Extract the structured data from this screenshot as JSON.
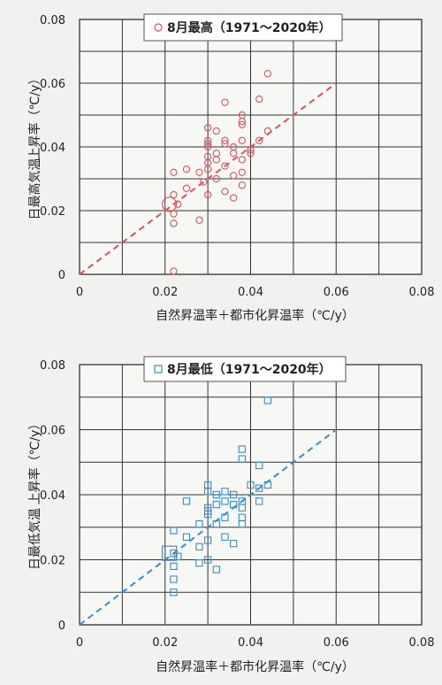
{
  "chart_data": [
    {
      "type": "scatter",
      "legend_label": "8月最高（1971～2020年）",
      "xlabel": "自然昇温率＋都市化昇温率（℃/y）",
      "ylabel_part1": "日最高気温",
      "ylabel_part2": "上昇率（℃/y）",
      "xlim": [
        0,
        0.08
      ],
      "ylim": [
        0,
        0.08
      ],
      "x_ticks": [
        0,
        0.02,
        0.04,
        0.06,
        0.08
      ],
      "y_ticks": [
        0,
        0.02,
        0.04,
        0.06,
        0.08
      ],
      "x_tick_labels": [
        "0",
        "0.02",
        "0.04",
        "0.06",
        "0.08"
      ],
      "y_tick_labels": [
        "0",
        "0.02",
        "0.04",
        "0.06",
        "0.08"
      ],
      "grid": true,
      "legend_position": "top-center",
      "marker": "circle",
      "color": "#d9545a",
      "reference_line": {
        "style": "dashed",
        "x": [
          0,
          0.06
        ],
        "y": [
          0,
          0.06
        ]
      },
      "highlight_point": {
        "x": 0.021,
        "y": 0.022
      },
      "points": [
        [
          0.022,
          0.001
        ],
        [
          0.022,
          0.016
        ],
        [
          0.022,
          0.019
        ],
        [
          0.022,
          0.025
        ],
        [
          0.022,
          0.032
        ],
        [
          0.023,
          0.022
        ],
        [
          0.025,
          0.033
        ],
        [
          0.025,
          0.027
        ],
        [
          0.028,
          0.017
        ],
        [
          0.028,
          0.032
        ],
        [
          0.029,
          0.029
        ],
        [
          0.03,
          0.025
        ],
        [
          0.03,
          0.033
        ],
        [
          0.03,
          0.035
        ],
        [
          0.03,
          0.037
        ],
        [
          0.03,
          0.04
        ],
        [
          0.03,
          0.041
        ],
        [
          0.03,
          0.042
        ],
        [
          0.03,
          0.046
        ],
        [
          0.032,
          0.03
        ],
        [
          0.032,
          0.036
        ],
        [
          0.032,
          0.038
        ],
        [
          0.032,
          0.045
        ],
        [
          0.034,
          0.026
        ],
        [
          0.034,
          0.034
        ],
        [
          0.034,
          0.041
        ],
        [
          0.034,
          0.042
        ],
        [
          0.034,
          0.054
        ],
        [
          0.036,
          0.024
        ],
        [
          0.036,
          0.031
        ],
        [
          0.036,
          0.038
        ],
        [
          0.036,
          0.04
        ],
        [
          0.038,
          0.028
        ],
        [
          0.038,
          0.032
        ],
        [
          0.038,
          0.036
        ],
        [
          0.038,
          0.042
        ],
        [
          0.038,
          0.047
        ],
        [
          0.038,
          0.048
        ],
        [
          0.038,
          0.05
        ],
        [
          0.04,
          0.038
        ],
        [
          0.04,
          0.039
        ],
        [
          0.042,
          0.042
        ],
        [
          0.042,
          0.055
        ],
        [
          0.044,
          0.045
        ],
        [
          0.044,
          0.063
        ]
      ]
    },
    {
      "type": "scatter",
      "legend_label": "8月最低（1971～2020年）",
      "xlabel": "自然昇温率＋都市化昇温率（℃/y）",
      "ylabel_part1": "日最低気温",
      "ylabel_part2": "上昇率（℃/y）",
      "xlim": [
        0,
        0.08
      ],
      "ylim": [
        0,
        0.08
      ],
      "x_ticks": [
        0,
        0.02,
        0.04,
        0.06,
        0.08
      ],
      "y_ticks": [
        0,
        0.02,
        0.04,
        0.06,
        0.08
      ],
      "x_tick_labels": [
        "0",
        "0.02",
        "0.04",
        "0.06",
        "0.08"
      ],
      "y_tick_labels": [
        "0",
        "0.02",
        "0.04",
        "0.06",
        "0.08"
      ],
      "grid": true,
      "legend_position": "top-center",
      "marker": "square",
      "color": "#3a8cc8",
      "reference_line": {
        "style": "dashed",
        "x": [
          0,
          0.06
        ],
        "y": [
          0,
          0.06
        ]
      },
      "highlight_point": {
        "x": 0.021,
        "y": 0.022
      },
      "points": [
        [
          0.022,
          0.01
        ],
        [
          0.022,
          0.014
        ],
        [
          0.022,
          0.018
        ],
        [
          0.022,
          0.022
        ],
        [
          0.022,
          0.029
        ],
        [
          0.023,
          0.021
        ],
        [
          0.025,
          0.027
        ],
        [
          0.025,
          0.038
        ],
        [
          0.028,
          0.019
        ],
        [
          0.028,
          0.024
        ],
        [
          0.028,
          0.031
        ],
        [
          0.03,
          0.02
        ],
        [
          0.03,
          0.026
        ],
        [
          0.03,
          0.034
        ],
        [
          0.03,
          0.035
        ],
        [
          0.03,
          0.036
        ],
        [
          0.03,
          0.041
        ],
        [
          0.03,
          0.043
        ],
        [
          0.032,
          0.017
        ],
        [
          0.032,
          0.031
        ],
        [
          0.032,
          0.037
        ],
        [
          0.032,
          0.04
        ],
        [
          0.034,
          0.027
        ],
        [
          0.034,
          0.033
        ],
        [
          0.034,
          0.038
        ],
        [
          0.034,
          0.041
        ],
        [
          0.036,
          0.025
        ],
        [
          0.036,
          0.037
        ],
        [
          0.036,
          0.04
        ],
        [
          0.038,
          0.031
        ],
        [
          0.038,
          0.033
        ],
        [
          0.038,
          0.036
        ],
        [
          0.038,
          0.038
        ],
        [
          0.038,
          0.051
        ],
        [
          0.038,
          0.054
        ],
        [
          0.04,
          0.043
        ],
        [
          0.042,
          0.038
        ],
        [
          0.042,
          0.042
        ],
        [
          0.042,
          0.049
        ],
        [
          0.044,
          0.043
        ],
        [
          0.044,
          0.069
        ]
      ]
    }
  ]
}
